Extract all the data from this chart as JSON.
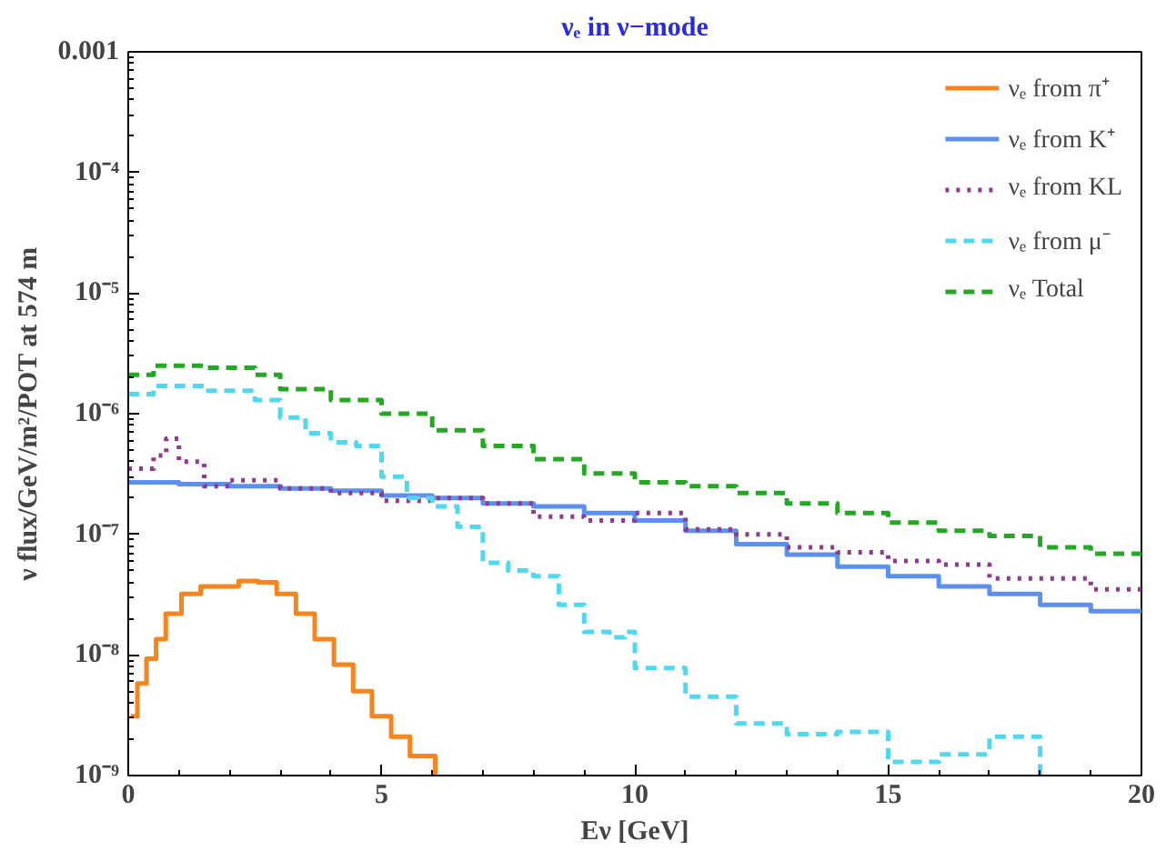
{
  "chart_data": {
    "type": "step",
    "title": "νₑ in ν−mode",
    "xlabel": "Eν [GeV]",
    "ylabel": "ν flux/GeV/m²/POT at 574 m",
    "log": "y",
    "grid": false,
    "legend": "top right",
    "marker": "none",
    "xlim": [
      0,
      20
    ],
    "xticks": [
      0,
      5,
      10,
      15,
      20
    ],
    "ylim": [
      1e-09,
      0.001
    ],
    "yticks": [
      {
        "value": 1e-09,
        "label": "10⁻⁹"
      },
      {
        "value": 1e-08,
        "label": "10⁻⁸"
      },
      {
        "value": 1e-07,
        "label": "10⁻⁷"
      },
      {
        "value": 1e-06,
        "label": "10⁻⁶"
      },
      {
        "value": 1e-05,
        "label": "10⁻⁵"
      },
      {
        "value": 0.0001,
        "label": "10⁻⁴"
      },
      0.001
    ],
    "series": [
      {
        "name": "νₑ from π⁺",
        "color": "#f7851e",
        "line_style": "solid",
        "x": [
          0.05,
          0.18,
          0.36,
          0.55,
          0.74,
          1.05,
          1.43,
          2.18,
          2.56,
          2.93,
          3.31,
          3.68,
          4.06,
          4.44,
          4.81,
          5.19,
          5.56,
          6.06
        ],
        "values": [
          3.1e-09,
          5.8e-09,
          9.3e-09,
          1.35e-08,
          2.2e-08,
          3.2e-08,
          3.7e-08,
          4.1e-08,
          4e-08,
          3.2e-08,
          2.2e-08,
          1.35e-08,
          8.3e-09,
          5e-09,
          3.1e-09,
          2.1e-09,
          1.45e-09,
          1e-09
        ]
      },
      {
        "name": "νₑ from K⁺",
        "color": "#5b8ff0",
        "line_style": "solid",
        "x": [
          0,
          1,
          2,
          3,
          4,
          5,
          6,
          7,
          8,
          9,
          10,
          11,
          12,
          13,
          14,
          15,
          16,
          17,
          18,
          19,
          20
        ],
        "values": [
          2.7e-07,
          2.6e-07,
          2.5e-07,
          2.4e-07,
          2.3e-07,
          2.1e-07,
          2e-07,
          1.8e-07,
          1.7e-07,
          1.5e-07,
          1.3e-07,
          1.07e-07,
          8.3e-08,
          6.8e-08,
          5.4e-08,
          4.5e-08,
          3.7e-08,
          3.2e-08,
          2.6e-08,
          2.3e-08,
          2.3e-08
        ]
      },
      {
        "name": "νₑ from KL",
        "color": "#8e3a8e",
        "line_style": "dotted",
        "x": [
          0,
          0.5,
          0.75,
          1,
          1.5,
          2,
          3,
          4,
          5,
          6,
          7,
          8,
          9,
          10,
          11,
          12,
          13,
          14,
          15,
          16,
          17,
          18,
          19,
          20
        ],
        "values": [
          3.5e-07,
          4.5e-07,
          6.2e-07,
          4e-07,
          2.5e-07,
          2.8e-07,
          2.4e-07,
          2.2e-07,
          1.9e-07,
          2e-07,
          1.8e-07,
          1.4e-07,
          1.3e-07,
          1.5e-07,
          1.1e-07,
          1e-07,
          7.8e-08,
          7.1e-08,
          6e-08,
          5.6e-08,
          4.3e-08,
          4.3e-08,
          3.5e-08,
          3.5e-08
        ]
      },
      {
        "name": "νₑ from μ⁻",
        "color": "#4fd8f0",
        "line_style": "dashed",
        "x": [
          0,
          0.5,
          1.5,
          2.5,
          3,
          3.5,
          4,
          4.5,
          5,
          5.5,
          6,
          6.5,
          7,
          7.5,
          8,
          8.5,
          9,
          9.5,
          9.8,
          10,
          11,
          12,
          13,
          14,
          15,
          16,
          17,
          18
        ],
        "values": [
          1.45e-06,
          1.7e-06,
          1.55e-06,
          1.3e-06,
          9.3e-07,
          6.9e-07,
          5.8e-07,
          5.4e-07,
          3e-07,
          2e-07,
          1.7e-07,
          1.15e-07,
          5.8e-08,
          5e-08,
          4.5e-08,
          2.6e-08,
          1.55e-08,
          1.4e-08,
          1.55e-08,
          7.8e-09,
          4.5e-09,
          2.7e-09,
          2.2e-09,
          2.3e-09,
          1.3e-09,
          1.5e-09,
          2.1e-09,
          1e-09
        ]
      },
      {
        "name": "νₑ Total",
        "color": "#22a822",
        "line_style": "dashed",
        "x": [
          0,
          0.5,
          1.5,
          2.5,
          3,
          4,
          5,
          6,
          7,
          8,
          9,
          10,
          11,
          12,
          13,
          14,
          15,
          16,
          17,
          18,
          19,
          20
        ],
        "values": [
          2.1e-06,
          2.5e-06,
          2.4e-06,
          2.1e-06,
          1.6e-06,
          1.3e-06,
          1e-06,
          7.3e-07,
          5.4e-07,
          4.2e-07,
          3.2e-07,
          2.7e-07,
          2.5e-07,
          2.2e-07,
          1.8e-07,
          1.5e-07,
          1.25e-07,
          1.07e-07,
          9.7e-08,
          7.8e-08,
          6.9e-08,
          6e-08
        ]
      }
    ]
  }
}
